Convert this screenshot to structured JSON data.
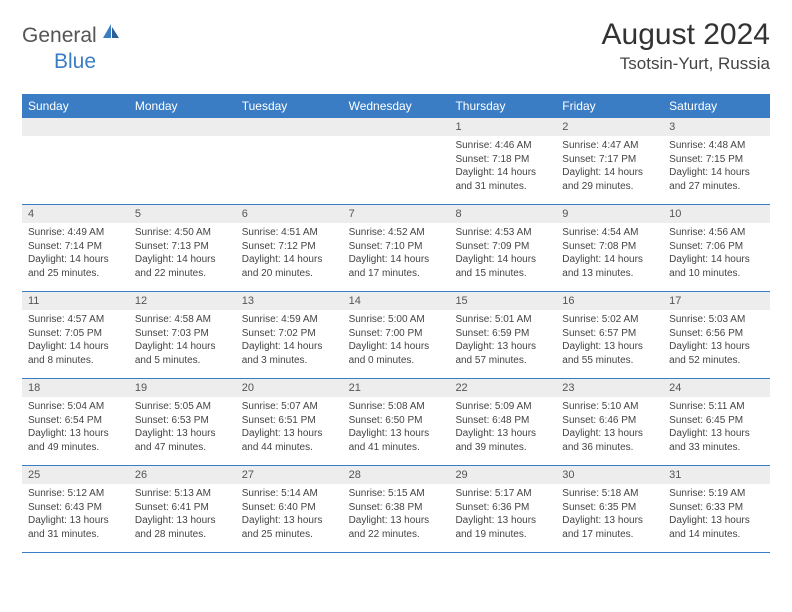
{
  "brand": {
    "word1": "General",
    "word2": "Blue"
  },
  "title": "August 2024",
  "location": "Tsotsin-Yurt, Russia",
  "colors": {
    "header_bg": "#3b7dc4",
    "header_text": "#ffffff",
    "daynum_bg": "#ededed",
    "border": "#3b7dc4",
    "text": "#444444",
    "background": "#ffffff"
  },
  "typography": {
    "title_fontsize": 30,
    "location_fontsize": 17,
    "dayheader_fontsize": 12,
    "daynum_fontsize": 11,
    "body_fontsize": 10
  },
  "layout": {
    "columns": 7,
    "rows": 5,
    "first_day_column": 4
  },
  "day_names": [
    "Sunday",
    "Monday",
    "Tuesday",
    "Wednesday",
    "Thursday",
    "Friday",
    "Saturday"
  ],
  "days": [
    {
      "n": "1",
      "sunrise": "Sunrise: 4:46 AM",
      "sunset": "Sunset: 7:18 PM",
      "dl1": "Daylight: 14 hours",
      "dl2": "and 31 minutes."
    },
    {
      "n": "2",
      "sunrise": "Sunrise: 4:47 AM",
      "sunset": "Sunset: 7:17 PM",
      "dl1": "Daylight: 14 hours",
      "dl2": "and 29 minutes."
    },
    {
      "n": "3",
      "sunrise": "Sunrise: 4:48 AM",
      "sunset": "Sunset: 7:15 PM",
      "dl1": "Daylight: 14 hours",
      "dl2": "and 27 minutes."
    },
    {
      "n": "4",
      "sunrise": "Sunrise: 4:49 AM",
      "sunset": "Sunset: 7:14 PM",
      "dl1": "Daylight: 14 hours",
      "dl2": "and 25 minutes."
    },
    {
      "n": "5",
      "sunrise": "Sunrise: 4:50 AM",
      "sunset": "Sunset: 7:13 PM",
      "dl1": "Daylight: 14 hours",
      "dl2": "and 22 minutes."
    },
    {
      "n": "6",
      "sunrise": "Sunrise: 4:51 AM",
      "sunset": "Sunset: 7:12 PM",
      "dl1": "Daylight: 14 hours",
      "dl2": "and 20 minutes."
    },
    {
      "n": "7",
      "sunrise": "Sunrise: 4:52 AM",
      "sunset": "Sunset: 7:10 PM",
      "dl1": "Daylight: 14 hours",
      "dl2": "and 17 minutes."
    },
    {
      "n": "8",
      "sunrise": "Sunrise: 4:53 AM",
      "sunset": "Sunset: 7:09 PM",
      "dl1": "Daylight: 14 hours",
      "dl2": "and 15 minutes."
    },
    {
      "n": "9",
      "sunrise": "Sunrise: 4:54 AM",
      "sunset": "Sunset: 7:08 PM",
      "dl1": "Daylight: 14 hours",
      "dl2": "and 13 minutes."
    },
    {
      "n": "10",
      "sunrise": "Sunrise: 4:56 AM",
      "sunset": "Sunset: 7:06 PM",
      "dl1": "Daylight: 14 hours",
      "dl2": "and 10 minutes."
    },
    {
      "n": "11",
      "sunrise": "Sunrise: 4:57 AM",
      "sunset": "Sunset: 7:05 PM",
      "dl1": "Daylight: 14 hours",
      "dl2": "and 8 minutes."
    },
    {
      "n": "12",
      "sunrise": "Sunrise: 4:58 AM",
      "sunset": "Sunset: 7:03 PM",
      "dl1": "Daylight: 14 hours",
      "dl2": "and 5 minutes."
    },
    {
      "n": "13",
      "sunrise": "Sunrise: 4:59 AM",
      "sunset": "Sunset: 7:02 PM",
      "dl1": "Daylight: 14 hours",
      "dl2": "and 3 minutes."
    },
    {
      "n": "14",
      "sunrise": "Sunrise: 5:00 AM",
      "sunset": "Sunset: 7:00 PM",
      "dl1": "Daylight: 14 hours",
      "dl2": "and 0 minutes."
    },
    {
      "n": "15",
      "sunrise": "Sunrise: 5:01 AM",
      "sunset": "Sunset: 6:59 PM",
      "dl1": "Daylight: 13 hours",
      "dl2": "and 57 minutes."
    },
    {
      "n": "16",
      "sunrise": "Sunrise: 5:02 AM",
      "sunset": "Sunset: 6:57 PM",
      "dl1": "Daylight: 13 hours",
      "dl2": "and 55 minutes."
    },
    {
      "n": "17",
      "sunrise": "Sunrise: 5:03 AM",
      "sunset": "Sunset: 6:56 PM",
      "dl1": "Daylight: 13 hours",
      "dl2": "and 52 minutes."
    },
    {
      "n": "18",
      "sunrise": "Sunrise: 5:04 AM",
      "sunset": "Sunset: 6:54 PM",
      "dl1": "Daylight: 13 hours",
      "dl2": "and 49 minutes."
    },
    {
      "n": "19",
      "sunrise": "Sunrise: 5:05 AM",
      "sunset": "Sunset: 6:53 PM",
      "dl1": "Daylight: 13 hours",
      "dl2": "and 47 minutes."
    },
    {
      "n": "20",
      "sunrise": "Sunrise: 5:07 AM",
      "sunset": "Sunset: 6:51 PM",
      "dl1": "Daylight: 13 hours",
      "dl2": "and 44 minutes."
    },
    {
      "n": "21",
      "sunrise": "Sunrise: 5:08 AM",
      "sunset": "Sunset: 6:50 PM",
      "dl1": "Daylight: 13 hours",
      "dl2": "and 41 minutes."
    },
    {
      "n": "22",
      "sunrise": "Sunrise: 5:09 AM",
      "sunset": "Sunset: 6:48 PM",
      "dl1": "Daylight: 13 hours",
      "dl2": "and 39 minutes."
    },
    {
      "n": "23",
      "sunrise": "Sunrise: 5:10 AM",
      "sunset": "Sunset: 6:46 PM",
      "dl1": "Daylight: 13 hours",
      "dl2": "and 36 minutes."
    },
    {
      "n": "24",
      "sunrise": "Sunrise: 5:11 AM",
      "sunset": "Sunset: 6:45 PM",
      "dl1": "Daylight: 13 hours",
      "dl2": "and 33 minutes."
    },
    {
      "n": "25",
      "sunrise": "Sunrise: 5:12 AM",
      "sunset": "Sunset: 6:43 PM",
      "dl1": "Daylight: 13 hours",
      "dl2": "and 31 minutes."
    },
    {
      "n": "26",
      "sunrise": "Sunrise: 5:13 AM",
      "sunset": "Sunset: 6:41 PM",
      "dl1": "Daylight: 13 hours",
      "dl2": "and 28 minutes."
    },
    {
      "n": "27",
      "sunrise": "Sunrise: 5:14 AM",
      "sunset": "Sunset: 6:40 PM",
      "dl1": "Daylight: 13 hours",
      "dl2": "and 25 minutes."
    },
    {
      "n": "28",
      "sunrise": "Sunrise: 5:15 AM",
      "sunset": "Sunset: 6:38 PM",
      "dl1": "Daylight: 13 hours",
      "dl2": "and 22 minutes."
    },
    {
      "n": "29",
      "sunrise": "Sunrise: 5:17 AM",
      "sunset": "Sunset: 6:36 PM",
      "dl1": "Daylight: 13 hours",
      "dl2": "and 19 minutes."
    },
    {
      "n": "30",
      "sunrise": "Sunrise: 5:18 AM",
      "sunset": "Sunset: 6:35 PM",
      "dl1": "Daylight: 13 hours",
      "dl2": "and 17 minutes."
    },
    {
      "n": "31",
      "sunrise": "Sunrise: 5:19 AM",
      "sunset": "Sunset: 6:33 PM",
      "dl1": "Daylight: 13 hours",
      "dl2": "and 14 minutes."
    }
  ]
}
